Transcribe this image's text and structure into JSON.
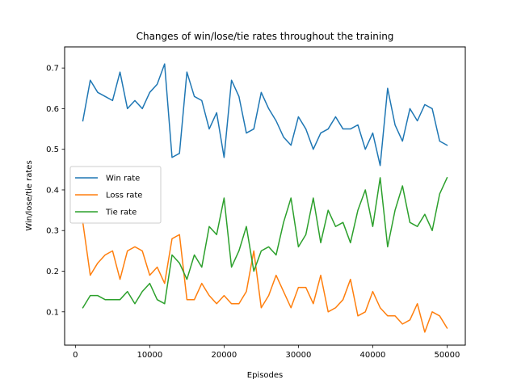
{
  "chart_data": {
    "type": "line",
    "title": "Changes of win/lose/tie rates throughout the training",
    "xlabel": "Episodes",
    "ylabel": "Win/lose/tie rates",
    "xlim": [
      -1450,
      52450
    ],
    "ylim": [
      0.018,
      0.752
    ],
    "xticks": [
      0,
      10000,
      20000,
      30000,
      40000,
      50000
    ],
    "yticks": [
      0.1,
      0.2,
      0.3,
      0.4,
      0.5,
      0.6,
      0.7
    ],
    "xtick_labels": [
      "0",
      "10000",
      "20000",
      "30000",
      "40000",
      "50000"
    ],
    "ytick_labels": [
      "0.1",
      "0.2",
      "0.3",
      "0.4",
      "0.5",
      "0.6",
      "0.7"
    ],
    "grid": false,
    "legend_position": "center-left",
    "x": [
      1000,
      2000,
      3000,
      4000,
      5000,
      6000,
      7000,
      8000,
      9000,
      10000,
      11000,
      12000,
      13000,
      14000,
      15000,
      16000,
      17000,
      18000,
      19000,
      20000,
      21000,
      22000,
      23000,
      24000,
      25000,
      26000,
      27000,
      28000,
      29000,
      30000,
      31000,
      32000,
      33000,
      34000,
      35000,
      36000,
      37000,
      38000,
      39000,
      40000,
      41000,
      42000,
      43000,
      44000,
      45000,
      46000,
      47000,
      48000,
      49000,
      50000
    ],
    "series": [
      {
        "name": "Win rate",
        "color": "#1f77b4",
        "values": [
          0.57,
          0.67,
          0.64,
          0.63,
          0.62,
          0.69,
          0.6,
          0.62,
          0.6,
          0.64,
          0.66,
          0.71,
          0.48,
          0.49,
          0.69,
          0.63,
          0.62,
          0.55,
          0.59,
          0.48,
          0.67,
          0.63,
          0.54,
          0.55,
          0.64,
          0.6,
          0.57,
          0.53,
          0.51,
          0.58,
          0.55,
          0.5,
          0.54,
          0.55,
          0.58,
          0.55,
          0.55,
          0.56,
          0.5,
          0.54,
          0.46,
          0.65,
          0.56,
          0.52,
          0.6,
          0.57,
          0.61,
          0.6,
          0.52,
          0.51
        ]
      },
      {
        "name": "Loss rate",
        "color": "#ff7f0e",
        "values": [
          0.32,
          0.19,
          0.22,
          0.24,
          0.25,
          0.18,
          0.25,
          0.26,
          0.25,
          0.19,
          0.21,
          0.17,
          0.28,
          0.29,
          0.13,
          0.13,
          0.17,
          0.14,
          0.12,
          0.14,
          0.12,
          0.12,
          0.15,
          0.25,
          0.11,
          0.14,
          0.19,
          0.15,
          0.11,
          0.16,
          0.16,
          0.12,
          0.19,
          0.1,
          0.11,
          0.13,
          0.18,
          0.09,
          0.1,
          0.15,
          0.11,
          0.09,
          0.09,
          0.07,
          0.08,
          0.12,
          0.05,
          0.1,
          0.09,
          0.06
        ]
      },
      {
        "name": "Tie rate",
        "color": "#2ca02c",
        "values": [
          0.11,
          0.14,
          0.14,
          0.13,
          0.13,
          0.13,
          0.15,
          0.12,
          0.15,
          0.17,
          0.13,
          0.12,
          0.24,
          0.22,
          0.18,
          0.24,
          0.21,
          0.31,
          0.29,
          0.38,
          0.21,
          0.25,
          0.31,
          0.2,
          0.25,
          0.26,
          0.24,
          0.32,
          0.38,
          0.26,
          0.29,
          0.38,
          0.27,
          0.35,
          0.31,
          0.32,
          0.27,
          0.35,
          0.4,
          0.31,
          0.43,
          0.26,
          0.35,
          0.41,
          0.32,
          0.31,
          0.34,
          0.3,
          0.39,
          0.43
        ]
      }
    ]
  }
}
